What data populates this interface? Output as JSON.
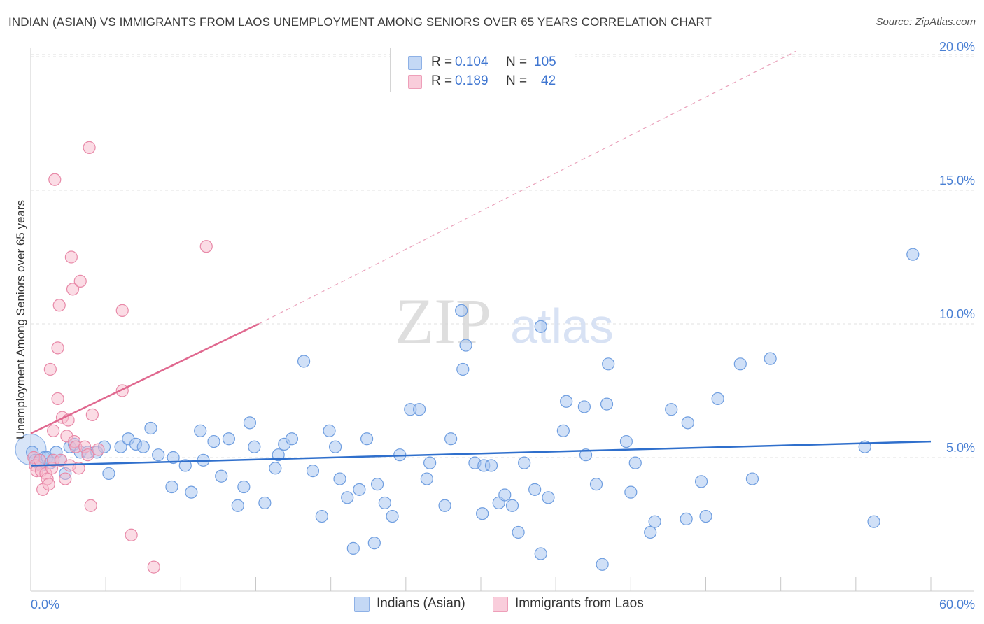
{
  "chart_data": {
    "type": "scatter",
    "title": "INDIAN (ASIAN) VS IMMIGRANTS FROM LAOS UNEMPLOYMENT AMONG SENIORS OVER 65 YEARS CORRELATION CHART",
    "source": "Source: ZipAtlas.com",
    "ylabel": "Unemployment Among Seniors over 65 years",
    "xlabel": "",
    "xlim": [
      0,
      60
    ],
    "ylim": [
      0,
      20
    ],
    "x_tick_labels": {
      "min": "0.0%",
      "max": "60.0%"
    },
    "y_ticks": [
      {
        "value": 5,
        "label": "5.0%"
      },
      {
        "value": 10,
        "label": "10.0%"
      },
      {
        "value": 15,
        "label": "15.0%"
      },
      {
        "value": 20,
        "label": "20.0%"
      }
    ],
    "watermark": {
      "a": "ZIP",
      "b": "atlas"
    },
    "legend": {
      "r_label": "R =",
      "n_label": "N =",
      "entries": [
        {
          "name": "Indians (Asian)",
          "r": "0.104",
          "n": "105",
          "color": "#a9c6f0",
          "edge": "#6f9ee0"
        },
        {
          "name": "Immigrants from Laos",
          "r": "0.189",
          "n": "42",
          "color": "#f7b9cc",
          "edge": "#e889a8"
        }
      ]
    },
    "series": [
      {
        "name": "Indians (Asian)",
        "color": "#a9c6f0",
        "edge": "#6f9ee0",
        "trend": {
          "x0": 0,
          "y0": 4.7,
          "x1": 60,
          "y1": 5.6,
          "color": "#2f6fcc"
        },
        "points": [
          [
            0.1,
            5.2
          ],
          [
            0.3,
            4.9
          ],
          [
            0.5,
            4.8
          ],
          [
            0.7,
            4.7
          ],
          [
            0.9,
            5.0
          ],
          [
            1.1,
            5.0
          ],
          [
            1.3,
            4.8
          ],
          [
            1.5,
            4.9
          ],
          [
            1.7,
            5.2
          ],
          [
            2.0,
            4.9
          ],
          [
            2.3,
            4.4
          ],
          [
            2.6,
            5.4
          ],
          [
            2.9,
            5.5
          ],
          [
            3.3,
            5.2
          ],
          [
            3.8,
            5.2
          ],
          [
            4.4,
            5.2
          ],
          [
            4.9,
            5.4
          ],
          [
            5.2,
            4.4
          ],
          [
            6.0,
            5.4
          ],
          [
            6.5,
            5.7
          ],
          [
            7.0,
            5.5
          ],
          [
            7.5,
            5.4
          ],
          [
            8.0,
            6.1
          ],
          [
            8.5,
            5.1
          ],
          [
            9.5,
            5.0
          ],
          [
            9.4,
            3.9
          ],
          [
            10.3,
            4.7
          ],
          [
            10.7,
            3.7
          ],
          [
            11.3,
            6.0
          ],
          [
            11.5,
            4.9
          ],
          [
            12.2,
            5.6
          ],
          [
            12.7,
            4.3
          ],
          [
            13.2,
            5.7
          ],
          [
            13.8,
            3.2
          ],
          [
            14.2,
            3.9
          ],
          [
            14.6,
            6.3
          ],
          [
            14.9,
            5.4
          ],
          [
            15.6,
            3.3
          ],
          [
            16.3,
            4.6
          ],
          [
            16.5,
            5.1
          ],
          [
            16.9,
            5.5
          ],
          [
            17.4,
            5.7
          ],
          [
            18.2,
            8.6
          ],
          [
            18.8,
            4.5
          ],
          [
            19.4,
            2.8
          ],
          [
            19.9,
            6.0
          ],
          [
            20.3,
            5.4
          ],
          [
            20.6,
            4.2
          ],
          [
            21.1,
            3.5
          ],
          [
            21.5,
            1.6
          ],
          [
            21.9,
            3.8
          ],
          [
            22.4,
            5.7
          ],
          [
            22.9,
            1.8
          ],
          [
            23.1,
            4.0
          ],
          [
            23.6,
            3.3
          ],
          [
            24.1,
            2.8
          ],
          [
            24.6,
            5.1
          ],
          [
            25.3,
            6.8
          ],
          [
            25.9,
            6.8
          ],
          [
            26.4,
            4.2
          ],
          [
            26.6,
            4.8
          ],
          [
            27.6,
            3.2
          ],
          [
            28.0,
            5.7
          ],
          [
            28.7,
            10.5
          ],
          [
            28.8,
            8.3
          ],
          [
            29.0,
            9.2
          ],
          [
            29.6,
            4.8
          ],
          [
            30.1,
            2.9
          ],
          [
            30.2,
            4.7
          ],
          [
            30.7,
            4.7
          ],
          [
            31.2,
            3.3
          ],
          [
            31.6,
            3.6
          ],
          [
            32.1,
            3.2
          ],
          [
            32.5,
            2.2
          ],
          [
            32.9,
            4.8
          ],
          [
            33.6,
            3.8
          ],
          [
            34.0,
            1.4
          ],
          [
            34.0,
            9.9
          ],
          [
            34.5,
            3.5
          ],
          [
            35.5,
            6.0
          ],
          [
            35.7,
            7.1
          ],
          [
            36.9,
            6.9
          ],
          [
            37.0,
            5.1
          ],
          [
            37.7,
            4.0
          ],
          [
            38.1,
            1.0
          ],
          [
            38.4,
            7.0
          ],
          [
            38.5,
            8.5
          ],
          [
            39.7,
            5.6
          ],
          [
            40.0,
            3.7
          ],
          [
            40.3,
            4.8
          ],
          [
            41.3,
            2.2
          ],
          [
            41.6,
            2.6
          ],
          [
            42.7,
            6.8
          ],
          [
            43.7,
            2.7
          ],
          [
            43.8,
            6.3
          ],
          [
            44.7,
            4.1
          ],
          [
            45.0,
            2.8
          ],
          [
            45.8,
            7.2
          ],
          [
            47.3,
            8.5
          ],
          [
            48.1,
            4.2
          ],
          [
            49.3,
            8.7
          ],
          [
            55.6,
            5.4
          ],
          [
            56.2,
            2.6
          ],
          [
            58.8,
            12.6
          ]
        ]
      },
      {
        "name": "Immigrants from Laos",
        "color": "#f7b9cc",
        "edge": "#e889a8",
        "trend": {
          "x0": 0,
          "y0": 5.9,
          "x1": 15.2,
          "y1": 10.0,
          "x2": 51,
          "y2": 20.2,
          "color": "#e0688f"
        },
        "points": [
          [
            0.2,
            5.0
          ],
          [
            0.3,
            4.7
          ],
          [
            0.4,
            4.5
          ],
          [
            0.6,
            4.9
          ],
          [
            0.7,
            4.5
          ],
          [
            0.8,
            3.8
          ],
          [
            1.0,
            4.4
          ],
          [
            1.1,
            4.2
          ],
          [
            1.2,
            4.0
          ],
          [
            1.3,
            8.3
          ],
          [
            1.4,
            4.6
          ],
          [
            1.5,
            6.0
          ],
          [
            1.5,
            4.9
          ],
          [
            1.6,
            15.4
          ],
          [
            1.8,
            7.2
          ],
          [
            1.8,
            9.1
          ],
          [
            1.9,
            10.7
          ],
          [
            2.0,
            4.9
          ],
          [
            2.1,
            6.5
          ],
          [
            2.3,
            4.2
          ],
          [
            2.4,
            5.8
          ],
          [
            2.5,
            6.4
          ],
          [
            2.6,
            4.7
          ],
          [
            2.7,
            12.5
          ],
          [
            2.8,
            11.3
          ],
          [
            2.9,
            5.6
          ],
          [
            3.0,
            5.4
          ],
          [
            3.2,
            4.6
          ],
          [
            3.3,
            11.6
          ],
          [
            3.6,
            5.4
          ],
          [
            3.8,
            5.1
          ],
          [
            3.9,
            16.6
          ],
          [
            4.0,
            3.2
          ],
          [
            4.1,
            6.6
          ],
          [
            4.5,
            5.3
          ],
          [
            6.1,
            10.5
          ],
          [
            6.1,
            7.5
          ],
          [
            6.7,
            2.1
          ],
          [
            8.2,
            0.9
          ],
          [
            11.7,
            12.9
          ]
        ]
      }
    ]
  }
}
